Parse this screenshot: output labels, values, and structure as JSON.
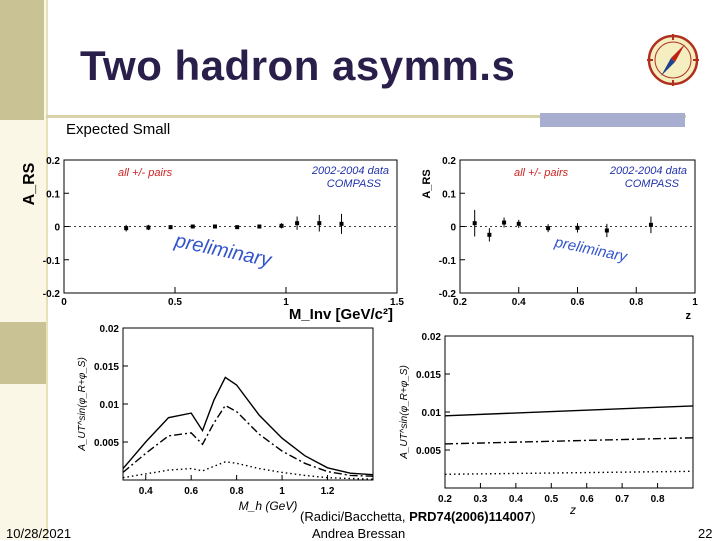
{
  "slide": {
    "title": "Two hadron asymm.s",
    "subtitle": "Expected Small",
    "citation_prefix": "(Radici/Bacchetta, ",
    "citation_ref": "PRD74(2006)114007",
    "citation_suffix": ")",
    "footer_date": "10/28/2021",
    "footer_author": "Andrea Bressan",
    "page_number": "22",
    "logo_icon": "compass-logo-icon"
  },
  "colors": {
    "title": "#2a1f4a",
    "accent_band": "#c9c294",
    "accent_box": "#a8aed0",
    "legend_red": "#cc2222",
    "legend_blue": "#2233aa"
  },
  "chart_data": [
    {
      "type": "scatter",
      "ylabel": "A_RS",
      "xlabel": "M_Inv [GeV/c²]",
      "legend_left": "all +/- pairs",
      "legend_right_1": "2002-2004 data",
      "legend_right_2": "COMPASS",
      "annotation": "preliminary",
      "xlim": [
        0,
        1.5
      ],
      "ylim": [
        -0.2,
        0.2
      ],
      "x_ticks": [
        "0",
        "0.5",
        "1",
        "1.5"
      ],
      "y_ticks": [
        "0.2",
        "0.1",
        "0",
        "-0.1",
        "-0.2"
      ],
      "points": [
        {
          "x": 0.28,
          "y": -0.005,
          "err": 0.01
        },
        {
          "x": 0.38,
          "y": -0.003,
          "err": 0.008
        },
        {
          "x": 0.48,
          "y": -0.002,
          "err": 0.006
        },
        {
          "x": 0.58,
          "y": 0.0,
          "err": 0.006
        },
        {
          "x": 0.68,
          "y": 0.0,
          "err": 0.005
        },
        {
          "x": 0.78,
          "y": -0.002,
          "err": 0.005
        },
        {
          "x": 0.88,
          "y": 0.0,
          "err": 0.006
        },
        {
          "x": 0.98,
          "y": 0.002,
          "err": 0.008
        },
        {
          "x": 1.05,
          "y": 0.01,
          "err": 0.02
        },
        {
          "x": 1.15,
          "y": 0.01,
          "err": 0.025
        },
        {
          "x": 1.25,
          "y": 0.008,
          "err": 0.03
        }
      ]
    },
    {
      "type": "scatter",
      "ylabel": "A_RS",
      "xlabel": "z",
      "legend_left": "all +/- pairs",
      "legend_right_1": "2002-2004 data",
      "legend_right_2": "COMPASS",
      "annotation": "preliminary",
      "xlim": [
        0.2,
        1.0
      ],
      "ylim": [
        -0.2,
        0.2
      ],
      "x_ticks": [
        "0.2",
        "0.4",
        "0.6",
        "0.8",
        "1"
      ],
      "y_ticks": [
        "0.2",
        "0.1",
        "0",
        "-0.1",
        "-0.2"
      ],
      "points": [
        {
          "x": 0.25,
          "y": 0.01,
          "err": 0.04
        },
        {
          "x": 0.3,
          "y": -0.025,
          "err": 0.02
        },
        {
          "x": 0.35,
          "y": 0.012,
          "err": 0.015
        },
        {
          "x": 0.4,
          "y": 0.008,
          "err": 0.012
        },
        {
          "x": 0.5,
          "y": -0.005,
          "err": 0.012
        },
        {
          "x": 0.6,
          "y": -0.004,
          "err": 0.014
        },
        {
          "x": 0.7,
          "y": -0.012,
          "err": 0.02
        },
        {
          "x": 0.85,
          "y": 0.005,
          "err": 0.025
        }
      ]
    },
    {
      "type": "line",
      "xlabel": "M_h (GeV)",
      "ylabel": "A_UT^sin(φ_R+φ_S)",
      "xlim": [
        0.3,
        1.4
      ],
      "ylim": [
        0,
        0.02
      ],
      "x_ticks": [
        "0.4",
        "0.6",
        "0.8",
        "1",
        "1.2"
      ],
      "y_ticks": [
        "0.02",
        "0.015",
        "0.01",
        "0.005"
      ],
      "series": [
        {
          "style": "solid",
          "x": [
            0.3,
            0.4,
            0.5,
            0.6,
            0.65,
            0.7,
            0.75,
            0.8,
            0.9,
            1.0,
            1.1,
            1.2,
            1.3,
            1.4
          ],
          "y": [
            0.0015,
            0.005,
            0.0082,
            0.0088,
            0.0065,
            0.0105,
            0.0135,
            0.0125,
            0.0085,
            0.0055,
            0.0032,
            0.0016,
            0.0009,
            0.0007
          ]
        },
        {
          "style": "dashdot",
          "x": [
            0.3,
            0.4,
            0.5,
            0.6,
            0.65,
            0.7,
            0.75,
            0.8,
            0.9,
            1.0,
            1.1,
            1.2,
            1.3,
            1.4
          ],
          "y": [
            0.001,
            0.0035,
            0.0058,
            0.0062,
            0.0047,
            0.0075,
            0.0098,
            0.009,
            0.006,
            0.0038,
            0.0022,
            0.0011,
            0.0006,
            0.0005
          ]
        },
        {
          "style": "dotted",
          "x": [
            0.3,
            0.4,
            0.5,
            0.6,
            0.65,
            0.7,
            0.75,
            0.8,
            0.9,
            1.0,
            1.1,
            1.2,
            1.3,
            1.4
          ],
          "y": [
            0.0003,
            0.0008,
            0.0013,
            0.0015,
            0.0012,
            0.0018,
            0.0024,
            0.0022,
            0.0015,
            0.001,
            0.0006,
            0.0003,
            0.0002,
            0.0001
          ]
        }
      ]
    },
    {
      "type": "line",
      "xlabel": "z",
      "ylabel": "A_UT^sin(φ_R+φ_S)",
      "xlim": [
        0.2,
        0.9
      ],
      "ylim": [
        0,
        0.02
      ],
      "x_ticks": [
        "0.2",
        "0.3",
        "0.4",
        "0.5",
        "0.6",
        "0.7",
        "0.8"
      ],
      "y_ticks": [
        "0.02",
        "0.015",
        "0.01",
        "0.005"
      ],
      "series": [
        {
          "style": "solid",
          "x": [
            0.2,
            0.9
          ],
          "y": [
            0.0095,
            0.0108
          ]
        },
        {
          "style": "dashdot",
          "x": [
            0.2,
            0.9
          ],
          "y": [
            0.0058,
            0.0066
          ]
        },
        {
          "style": "dotted",
          "x": [
            0.2,
            0.9
          ],
          "y": [
            0.0018,
            0.0022
          ]
        }
      ]
    }
  ]
}
